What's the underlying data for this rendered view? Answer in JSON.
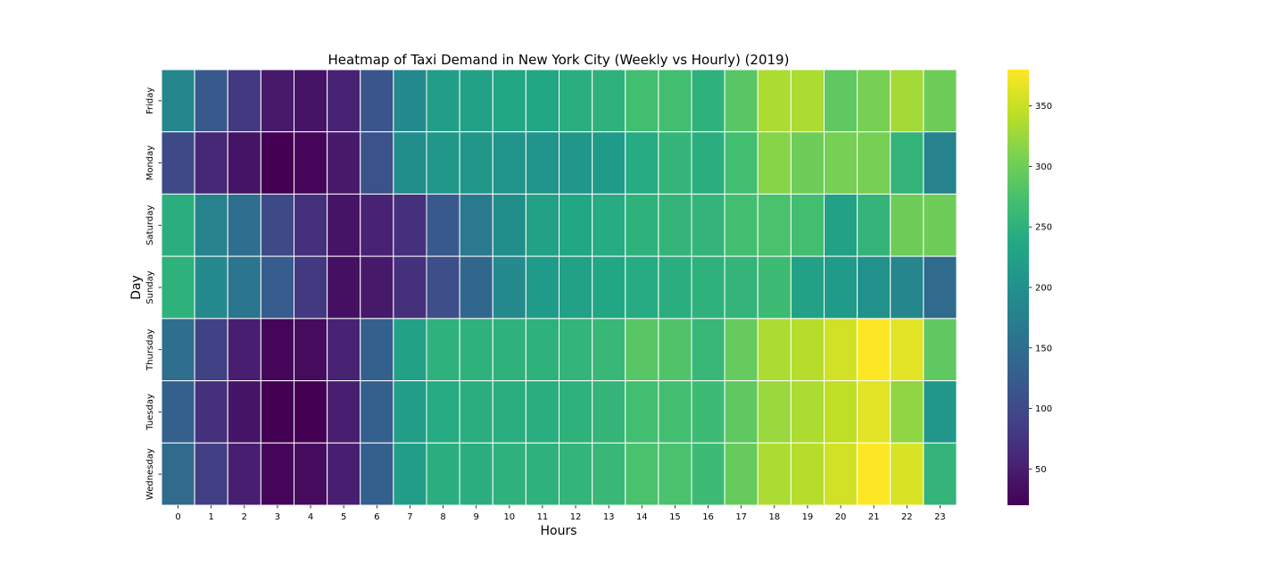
{
  "chart_data": {
    "type": "heatmap",
    "title": "Heatmap of Taxi Demand in New York City (Weekly vs Hourly) (2019)",
    "xlabel": "Hours",
    "ylabel": "Day",
    "x": [
      "0",
      "1",
      "2",
      "3",
      "4",
      "5",
      "6",
      "7",
      "8",
      "9",
      "10",
      "11",
      "12",
      "13",
      "14",
      "15",
      "16",
      "17",
      "18",
      "19",
      "20",
      "21",
      "22",
      "23"
    ],
    "y": [
      "Friday",
      "Monday",
      "Saturday",
      "Sunday",
      "Thursday",
      "Tuesday",
      "Wednesday"
    ],
    "values": [
      [
        185,
        120,
        80,
        45,
        40,
        55,
        115,
        190,
        220,
        225,
        235,
        235,
        245,
        250,
        270,
        270,
        250,
        285,
        335,
        335,
        290,
        305,
        330,
        300
      ],
      [
        100,
        60,
        40,
        20,
        25,
        45,
        110,
        195,
        210,
        210,
        205,
        205,
        210,
        215,
        240,
        255,
        245,
        270,
        315,
        300,
        305,
        305,
        255,
        180
      ],
      [
        245,
        180,
        150,
        100,
        70,
        40,
        55,
        70,
        120,
        165,
        195,
        225,
        235,
        240,
        250,
        255,
        255,
        270,
        275,
        270,
        225,
        255,
        300,
        300
      ],
      [
        250,
        190,
        160,
        125,
        80,
        35,
        45,
        70,
        105,
        140,
        190,
        215,
        225,
        235,
        240,
        245,
        250,
        255,
        265,
        225,
        215,
        200,
        185,
        145
      ],
      [
        150,
        90,
        50,
        25,
        30,
        55,
        130,
        225,
        250,
        250,
        250,
        250,
        255,
        260,
        285,
        280,
        260,
        295,
        335,
        340,
        355,
        380,
        365,
        290
      ],
      [
        130,
        70,
        40,
        20,
        20,
        50,
        130,
        220,
        240,
        245,
        245,
        245,
        250,
        255,
        270,
        270,
        265,
        290,
        325,
        335,
        345,
        365,
        320,
        210
      ],
      [
        145,
        85,
        50,
        25,
        30,
        50,
        130,
        220,
        245,
        245,
        250,
        250,
        255,
        260,
        275,
        275,
        265,
        295,
        335,
        340,
        355,
        380,
        360,
        255
      ]
    ],
    "colorbar": {
      "colormap": "viridis",
      "vmin": 20,
      "vmax": 380,
      "ticks": [
        "50",
        "100",
        "150",
        "200",
        "250",
        "300",
        "350"
      ]
    }
  }
}
